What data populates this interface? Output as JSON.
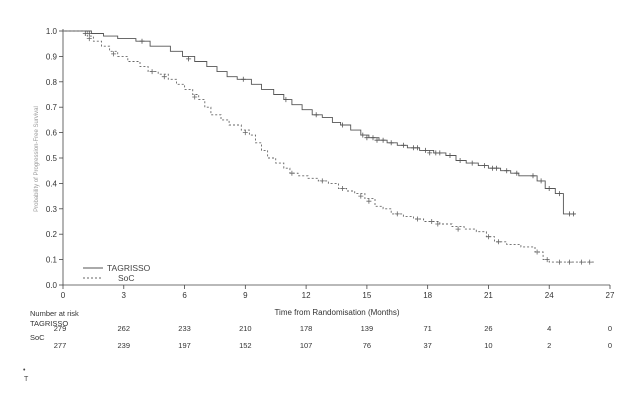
{
  "chart_data": {
    "type": "line",
    "title": "",
    "xlabel": "Time from Randomisation (Months)",
    "ylabel": "Probability of Progression-Free Survival",
    "xlim": [
      0,
      27
    ],
    "ylim": [
      0.0,
      1.0
    ],
    "x_ticks": [
      0,
      3,
      6,
      9,
      12,
      15,
      18,
      21,
      24,
      27
    ],
    "y_ticks": [
      0.0,
      0.1,
      0.2,
      0.3,
      0.4,
      0.5,
      0.6,
      0.7,
      0.8,
      0.9,
      1.0
    ],
    "y_tick_labels": [
      "0.0",
      "0.1",
      "0.2",
      "0.3",
      "0.4",
      "0.5",
      "0.6",
      "0.7",
      "0.8",
      "0.9",
      "1.0"
    ],
    "legend": {
      "position": "bottom-left",
      "entries": [
        "TAGRISSO",
        "SoC"
      ]
    },
    "series": [
      {
        "name": "TAGRISSO",
        "style": "solid",
        "color": "#555555",
        "points": [
          [
            0,
            1.0
          ],
          [
            1.4,
            0.99
          ],
          [
            2.0,
            0.98
          ],
          [
            2.7,
            0.97
          ],
          [
            3.6,
            0.96
          ],
          [
            4.3,
            0.94
          ],
          [
            5.3,
            0.92
          ],
          [
            5.9,
            0.9
          ],
          [
            6.5,
            0.88
          ],
          [
            7.1,
            0.86
          ],
          [
            7.6,
            0.84
          ],
          [
            8.1,
            0.82
          ],
          [
            8.6,
            0.81
          ],
          [
            9.3,
            0.79
          ],
          [
            9.8,
            0.77
          ],
          [
            10.4,
            0.75
          ],
          [
            10.9,
            0.73
          ],
          [
            11.3,
            0.71
          ],
          [
            11.8,
            0.69
          ],
          [
            12.3,
            0.67
          ],
          [
            12.8,
            0.66
          ],
          [
            13.3,
            0.64
          ],
          [
            13.7,
            0.63
          ],
          [
            14.2,
            0.61
          ],
          [
            14.7,
            0.59
          ],
          [
            15.1,
            0.58
          ],
          [
            15.6,
            0.57
          ],
          [
            16.0,
            0.56
          ],
          [
            16.5,
            0.55
          ],
          [
            17.0,
            0.54
          ],
          [
            17.6,
            0.53
          ],
          [
            18.3,
            0.52
          ],
          [
            18.9,
            0.51
          ],
          [
            19.4,
            0.49
          ],
          [
            19.9,
            0.48
          ],
          [
            20.5,
            0.47
          ],
          [
            21.0,
            0.46
          ],
          [
            21.6,
            0.45
          ],
          [
            22.1,
            0.44
          ],
          [
            22.5,
            0.43
          ],
          [
            23.0,
            0.43
          ],
          [
            23.4,
            0.41
          ],
          [
            23.8,
            0.38
          ],
          [
            24.3,
            0.36
          ],
          [
            24.7,
            0.28
          ],
          [
            25.3,
            0.28
          ]
        ],
        "censors": [
          [
            1.1,
            0.99
          ],
          [
            1.3,
            0.99
          ],
          [
            3.9,
            0.96
          ],
          [
            6.2,
            0.89
          ],
          [
            8.9,
            0.81
          ],
          [
            11.0,
            0.73
          ],
          [
            12.5,
            0.67
          ],
          [
            13.8,
            0.63
          ],
          [
            14.8,
            0.59
          ],
          [
            15.0,
            0.58
          ],
          [
            15.3,
            0.58
          ],
          [
            15.5,
            0.57
          ],
          [
            15.8,
            0.57
          ],
          [
            16.2,
            0.56
          ],
          [
            16.8,
            0.55
          ],
          [
            17.3,
            0.54
          ],
          [
            17.5,
            0.54
          ],
          [
            17.9,
            0.53
          ],
          [
            18.1,
            0.52
          ],
          [
            18.4,
            0.52
          ],
          [
            18.6,
            0.52
          ],
          [
            19.1,
            0.51
          ],
          [
            19.6,
            0.49
          ],
          [
            20.2,
            0.48
          ],
          [
            20.8,
            0.47
          ],
          [
            21.2,
            0.46
          ],
          [
            21.4,
            0.46
          ],
          [
            21.9,
            0.45
          ],
          [
            22.4,
            0.44
          ],
          [
            23.2,
            0.43
          ],
          [
            23.6,
            0.41
          ],
          [
            24.0,
            0.38
          ],
          [
            24.5,
            0.36
          ],
          [
            25.0,
            0.28
          ],
          [
            25.2,
            0.28
          ]
        ]
      },
      {
        "name": "SoC",
        "style": "dashed",
        "color": "#666666",
        "points": [
          [
            0,
            1.0
          ],
          [
            1.2,
            0.98
          ],
          [
            1.5,
            0.96
          ],
          [
            1.9,
            0.94
          ],
          [
            2.3,
            0.92
          ],
          [
            2.7,
            0.9
          ],
          [
            3.2,
            0.88
          ],
          [
            3.8,
            0.86
          ],
          [
            4.2,
            0.84
          ],
          [
            4.7,
            0.83
          ],
          [
            5.2,
            0.81
          ],
          [
            5.6,
            0.79
          ],
          [
            6.0,
            0.77
          ],
          [
            6.4,
            0.75
          ],
          [
            6.7,
            0.73
          ],
          [
            7.0,
            0.7
          ],
          [
            7.3,
            0.67
          ],
          [
            7.8,
            0.65
          ],
          [
            8.2,
            0.63
          ],
          [
            8.8,
            0.61
          ],
          [
            9.2,
            0.59
          ],
          [
            9.5,
            0.56
          ],
          [
            9.8,
            0.53
          ],
          [
            10.1,
            0.5
          ],
          [
            10.5,
            0.48
          ],
          [
            10.9,
            0.46
          ],
          [
            11.2,
            0.44
          ],
          [
            11.6,
            0.43
          ],
          [
            12.1,
            0.42
          ],
          [
            12.6,
            0.41
          ],
          [
            13.1,
            0.4
          ],
          [
            13.6,
            0.38
          ],
          [
            14.0,
            0.37
          ],
          [
            14.4,
            0.36
          ],
          [
            14.9,
            0.34
          ],
          [
            15.4,
            0.31
          ],
          [
            15.8,
            0.3
          ],
          [
            16.2,
            0.28
          ],
          [
            16.8,
            0.27
          ],
          [
            17.3,
            0.26
          ],
          [
            17.8,
            0.25
          ],
          [
            18.6,
            0.24
          ],
          [
            19.2,
            0.23
          ],
          [
            19.8,
            0.22
          ],
          [
            20.4,
            0.21
          ],
          [
            20.9,
            0.19
          ],
          [
            21.3,
            0.17
          ],
          [
            21.9,
            0.16
          ],
          [
            22.6,
            0.15
          ],
          [
            23.3,
            0.13
          ],
          [
            23.7,
            0.1
          ],
          [
            24.0,
            0.09
          ],
          [
            26.2,
            0.09
          ]
        ],
        "censors": [
          [
            1.3,
            0.97
          ],
          [
            2.5,
            0.91
          ],
          [
            4.4,
            0.84
          ],
          [
            5.0,
            0.82
          ],
          [
            6.5,
            0.74
          ],
          [
            9.0,
            0.6
          ],
          [
            11.3,
            0.44
          ],
          [
            12.8,
            0.41
          ],
          [
            13.8,
            0.38
          ],
          [
            14.7,
            0.35
          ],
          [
            15.1,
            0.33
          ],
          [
            16.5,
            0.28
          ],
          [
            17.5,
            0.26
          ],
          [
            18.2,
            0.25
          ],
          [
            18.5,
            0.24
          ],
          [
            19.5,
            0.22
          ],
          [
            21.0,
            0.19
          ],
          [
            21.5,
            0.17
          ],
          [
            23.4,
            0.13
          ],
          [
            23.9,
            0.1
          ],
          [
            24.5,
            0.09
          ],
          [
            25.0,
            0.09
          ],
          [
            25.6,
            0.09
          ],
          [
            26.0,
            0.09
          ]
        ]
      }
    ],
    "risk_table": {
      "header": "Number at risk",
      "rows": [
        {
          "label": "TAGRISSO",
          "values": [
            "279",
            "262",
            "233",
            "210",
            "178",
            "139",
            "71",
            "26",
            "4",
            "0"
          ]
        },
        {
          "label": "SoC",
          "values": [
            "277",
            "239",
            "197",
            "152",
            "107",
            "76",
            "37",
            "10",
            "2",
            "0"
          ]
        }
      ]
    }
  },
  "stray_marks": [
    "•",
    "T"
  ]
}
